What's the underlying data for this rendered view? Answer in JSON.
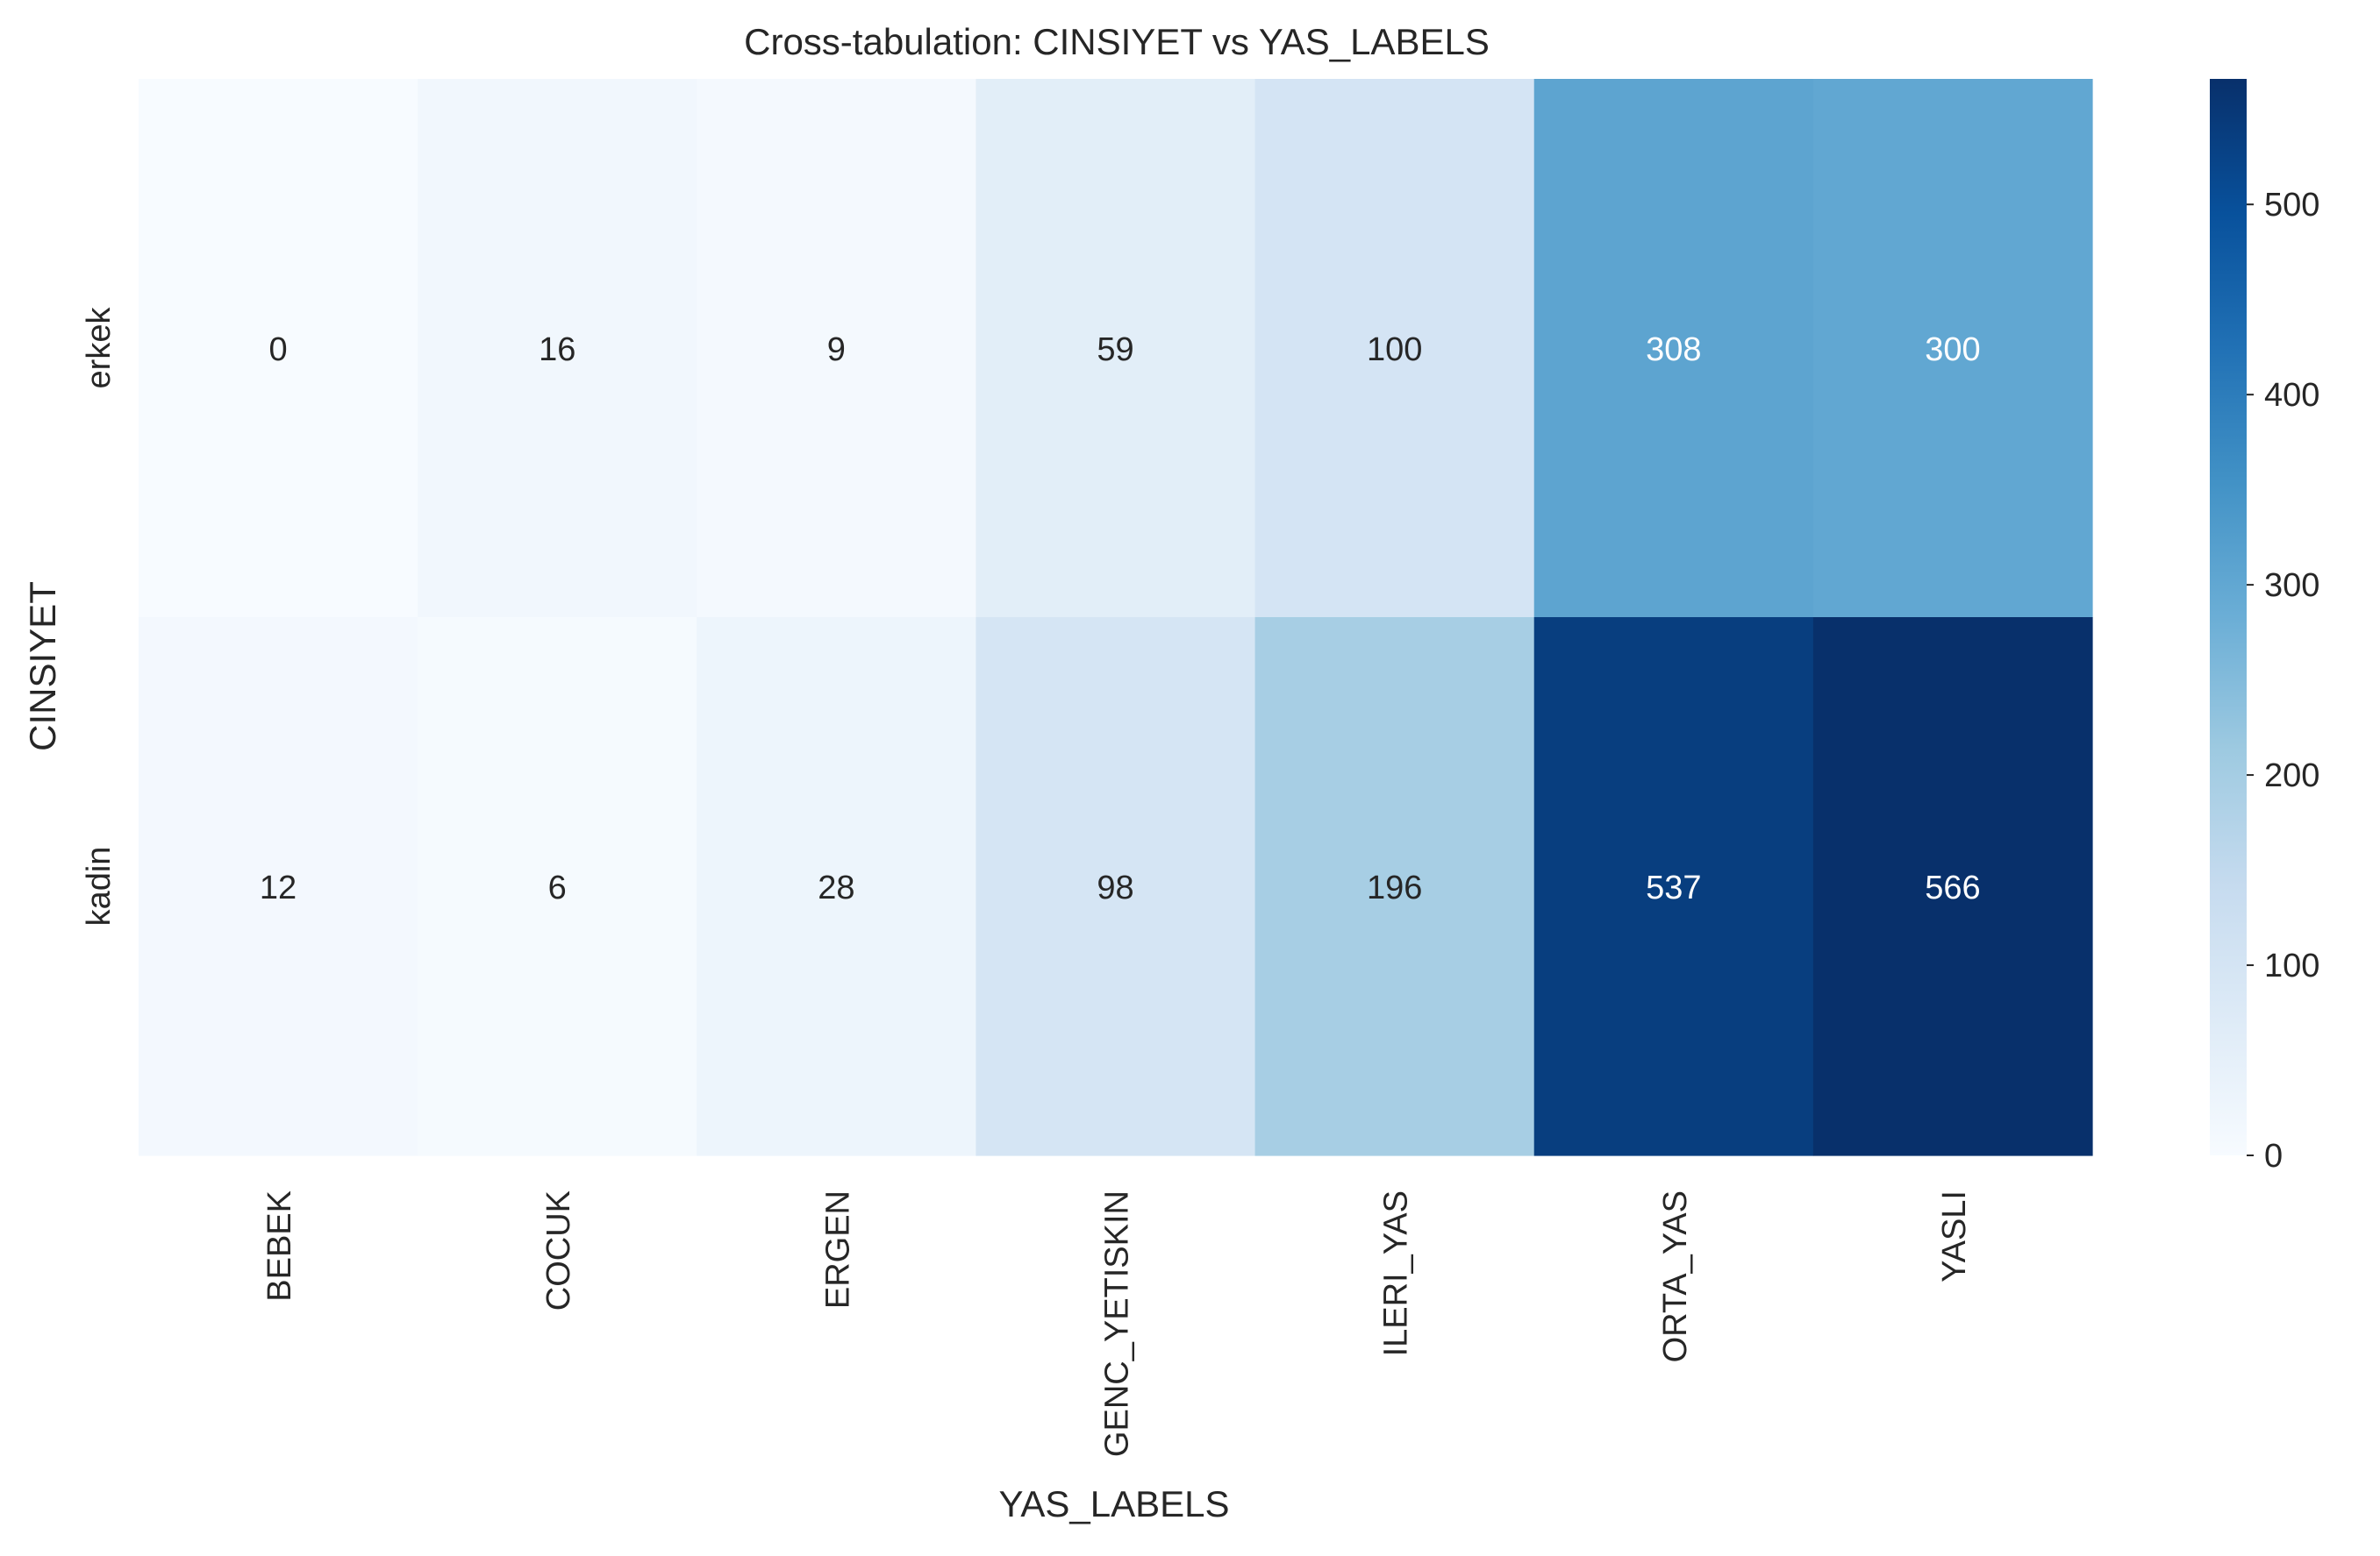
{
  "chart_data": {
    "type": "heatmap",
    "title": "Cross-tabulation: CINSIYET vs YAS_LABELS",
    "xlabel": "YAS_LABELS",
    "ylabel": "CINSIYET",
    "x_categories": [
      "BEBEK",
      "COCUK",
      "ERGEN",
      "GENC_YETISKIN",
      "ILERI_YAS",
      "ORTA_YAS",
      "YASLI"
    ],
    "y_categories": [
      "erkek",
      "kadin"
    ],
    "values": [
      [
        0,
        16,
        9,
        59,
        100,
        308,
        300
      ],
      [
        12,
        6,
        28,
        98,
        196,
        537,
        566
      ]
    ],
    "colormap": "Blues",
    "colorbar": {
      "range": [
        0,
        566
      ],
      "ticks": [
        0,
        100,
        200,
        300,
        400,
        500
      ]
    },
    "colors": {
      "low": "#f7fbff",
      "high": "#08306b",
      "annotation_dark": "#262626",
      "annotation_light": "#ffffff"
    }
  }
}
